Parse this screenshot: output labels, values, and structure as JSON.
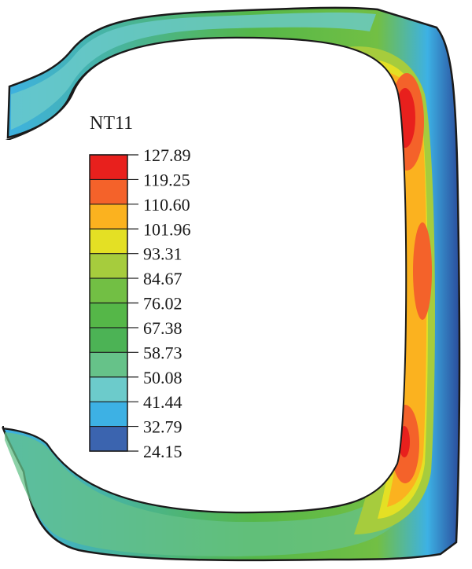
{
  "legend": {
    "title": "NT11",
    "entries": [
      {
        "value": "127.89",
        "color": "#e8201d"
      },
      {
        "value": "119.25",
        "color": "#f4622a"
      },
      {
        "value": "110.60",
        "color": "#fbb21f"
      },
      {
        "value": "101.96",
        "color": "#e4e024"
      },
      {
        "value": "93.31",
        "color": "#a6cc3d"
      },
      {
        "value": "84.67",
        "color": "#72bf44"
      },
      {
        "value": "76.02",
        "color": "#55b748"
      },
      {
        "value": "67.38",
        "color": "#4cb355"
      },
      {
        "value": "58.73",
        "color": "#66c289"
      },
      {
        "value": "50.08",
        "color": "#6ccbcb"
      },
      {
        "value": "41.44",
        "color": "#3db1e4"
      },
      {
        "value": "32.79",
        "color": "#3b64af"
      },
      {
        "value": "24.15",
        "color": "#2a4c9c"
      }
    ]
  },
  "colors": {
    "outline": "#1a1a1a",
    "background": "#ffffff"
  }
}
